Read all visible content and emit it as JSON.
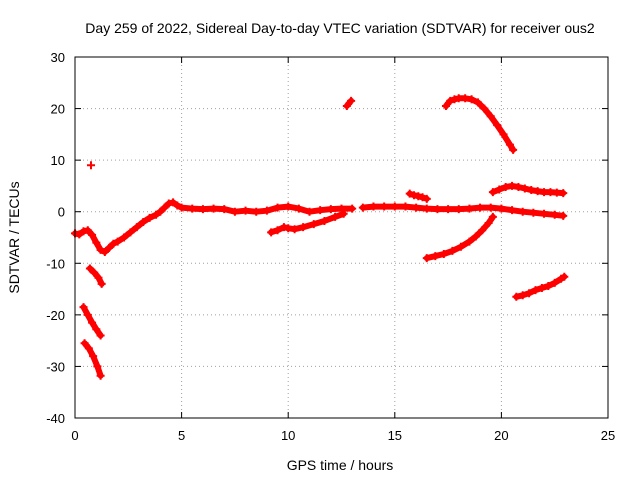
{
  "chart_data": {
    "type": "scatter",
    "title": "Day 259 of 2022, Sidereal Day-to-day VTEC variation (SDTVAR) for receiver ous2",
    "xlabel": "GPS time / hours",
    "ylabel": "SDTVAR / TECUs",
    "xlim": [
      0,
      25
    ],
    "ylim": [
      -40,
      30
    ],
    "xticks": [
      0,
      5,
      10,
      15,
      20,
      25
    ],
    "yticks": [
      -40,
      -30,
      -20,
      -10,
      0,
      10,
      20,
      30
    ],
    "grid": true,
    "marker_color": "#ff0000",
    "series": [
      {
        "name": "main-track",
        "points": [
          [
            0.0,
            -4.2
          ],
          [
            0.2,
            -4.4
          ],
          [
            0.4,
            -3.8
          ],
          [
            0.6,
            -3.6
          ],
          [
            0.8,
            -4.5
          ],
          [
            1.0,
            -6.0
          ],
          [
            1.2,
            -7.4
          ],
          [
            1.4,
            -7.8
          ],
          [
            1.6,
            -7.0
          ],
          [
            1.8,
            -6.2
          ],
          [
            2.0,
            -5.8
          ],
          [
            2.3,
            -5.0
          ],
          [
            2.6,
            -4.0
          ],
          [
            2.9,
            -3.0
          ],
          [
            3.2,
            -2.0
          ],
          [
            3.5,
            -1.2
          ],
          [
            3.8,
            -0.6
          ],
          [
            4.0,
            0.0
          ],
          [
            4.2,
            0.8
          ],
          [
            4.4,
            1.6
          ],
          [
            4.6,
            1.8
          ],
          [
            4.8,
            1.2
          ],
          [
            5.0,
            0.8
          ],
          [
            5.5,
            0.6
          ],
          [
            6.0,
            0.5
          ],
          [
            6.5,
            0.6
          ],
          [
            7.0,
            0.5
          ],
          [
            7.5,
            0.0
          ],
          [
            8.0,
            0.2
          ],
          [
            8.5,
            0.0
          ],
          [
            9.0,
            0.2
          ],
          [
            9.5,
            0.8
          ],
          [
            10.0,
            1.0
          ],
          [
            10.5,
            0.6
          ],
          [
            11.0,
            0.0
          ],
          [
            11.5,
            0.3
          ],
          [
            12.0,
            0.5
          ],
          [
            12.5,
            0.6
          ],
          [
            13.0,
            0.6
          ]
        ]
      },
      {
        "name": "mid-track",
        "points": [
          [
            13.5,
            0.8
          ],
          [
            14.0,
            1.0
          ],
          [
            14.5,
            1.0
          ],
          [
            15.0,
            1.0
          ],
          [
            15.5,
            1.0
          ],
          [
            16.0,
            0.8
          ],
          [
            16.5,
            0.6
          ],
          [
            17.0,
            0.5
          ],
          [
            17.5,
            0.5
          ],
          [
            18.0,
            0.5
          ],
          [
            18.5,
            0.6
          ],
          [
            19.0,
            0.8
          ],
          [
            19.5,
            0.8
          ],
          [
            20.0,
            0.6
          ],
          [
            20.5,
            0.3
          ],
          [
            21.0,
            0.0
          ],
          [
            21.5,
            -0.2
          ],
          [
            22.0,
            -0.4
          ],
          [
            22.5,
            -0.6
          ],
          [
            22.9,
            -0.8
          ]
        ]
      },
      {
        "name": "early-dot",
        "points": [
          [
            0.75,
            9.0
          ]
        ]
      },
      {
        "name": "early-arc-1",
        "points": [
          [
            0.7,
            -11.0
          ],
          [
            0.9,
            -11.8
          ],
          [
            1.1,
            -12.8
          ],
          [
            1.25,
            -14.0
          ]
        ]
      },
      {
        "name": "early-arc-2",
        "points": [
          [
            0.4,
            -18.5
          ],
          [
            0.6,
            -20.0
          ],
          [
            0.8,
            -21.5
          ],
          [
            1.0,
            -22.8
          ],
          [
            1.2,
            -24.0
          ]
        ]
      },
      {
        "name": "early-arc-3",
        "points": [
          [
            0.45,
            -25.5
          ],
          [
            0.65,
            -26.5
          ],
          [
            0.85,
            -28.0
          ],
          [
            1.05,
            -30.0
          ],
          [
            1.2,
            -31.8
          ]
        ]
      },
      {
        "name": "dip-arc",
        "points": [
          [
            9.2,
            -4.0
          ],
          [
            9.5,
            -3.6
          ],
          [
            9.8,
            -3.0
          ],
          [
            10.0,
            -3.2
          ],
          [
            10.3,
            -3.4
          ],
          [
            10.7,
            -3.0
          ],
          [
            11.2,
            -2.4
          ],
          [
            11.7,
            -1.8
          ],
          [
            12.2,
            -1.0
          ],
          [
            12.6,
            -0.4
          ]
        ]
      },
      {
        "name": "spike-13h",
        "points": [
          [
            12.75,
            20.5
          ],
          [
            12.95,
            21.5
          ]
        ]
      },
      {
        "name": "short-15-16h",
        "points": [
          [
            15.7,
            3.5
          ],
          [
            15.9,
            3.2
          ],
          [
            16.1,
            3.0
          ],
          [
            16.3,
            2.8
          ],
          [
            16.5,
            2.5
          ]
        ]
      },
      {
        "name": "high-arc",
        "points": [
          [
            17.4,
            20.5
          ],
          [
            17.6,
            21.5
          ],
          [
            17.8,
            21.8
          ],
          [
            18.0,
            22.0
          ],
          [
            18.3,
            22.0
          ],
          [
            18.6,
            21.8
          ],
          [
            18.9,
            21.2
          ],
          [
            19.2,
            20.0
          ],
          [
            19.5,
            18.5
          ],
          [
            19.8,
            16.8
          ],
          [
            20.1,
            15.0
          ],
          [
            20.4,
            13.0
          ],
          [
            20.55,
            12.0
          ]
        ]
      },
      {
        "name": "rising-arc",
        "points": [
          [
            16.5,
            -9.0
          ],
          [
            16.9,
            -8.6
          ],
          [
            17.3,
            -8.2
          ],
          [
            17.7,
            -7.6
          ],
          [
            18.1,
            -6.8
          ],
          [
            18.5,
            -5.8
          ],
          [
            18.8,
            -4.8
          ],
          [
            19.1,
            -3.6
          ],
          [
            19.4,
            -2.2
          ],
          [
            19.6,
            -1.0
          ]
        ]
      },
      {
        "name": "upper-right-arc",
        "points": [
          [
            19.6,
            3.8
          ],
          [
            19.9,
            4.3
          ],
          [
            20.2,
            4.8
          ],
          [
            20.5,
            5.0
          ],
          [
            20.8,
            4.8
          ],
          [
            21.1,
            4.5
          ],
          [
            21.4,
            4.2
          ],
          [
            21.7,
            4.0
          ],
          [
            22.0,
            3.8
          ],
          [
            22.3,
            3.8
          ],
          [
            22.6,
            3.7
          ],
          [
            22.9,
            3.6
          ]
        ]
      },
      {
        "name": "lower-right-arc",
        "points": [
          [
            20.7,
            -16.5
          ],
          [
            21.0,
            -16.2
          ],
          [
            21.3,
            -15.8
          ],
          [
            21.6,
            -15.2
          ],
          [
            21.9,
            -14.8
          ],
          [
            22.2,
            -14.4
          ],
          [
            22.5,
            -13.8
          ],
          [
            22.8,
            -13.0
          ],
          [
            22.95,
            -12.6
          ]
        ]
      }
    ]
  }
}
